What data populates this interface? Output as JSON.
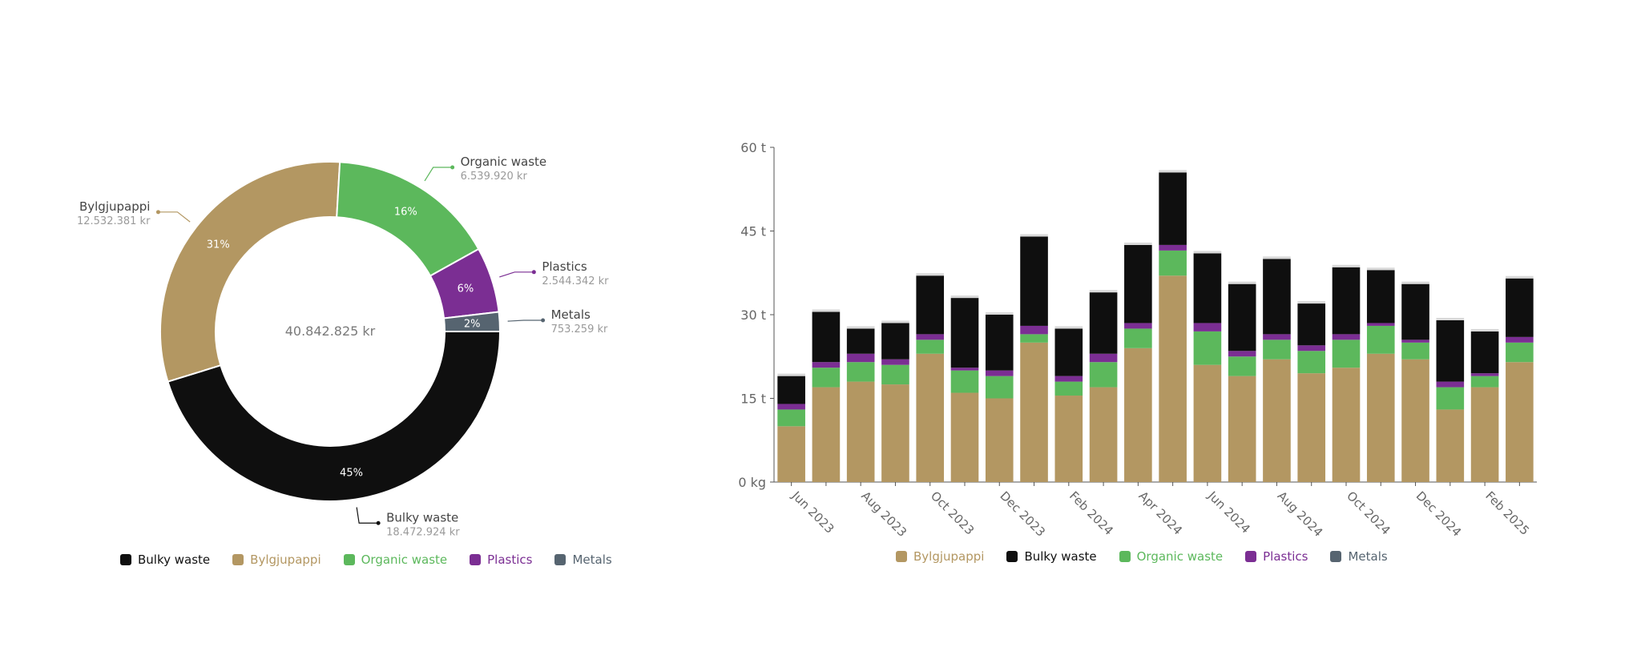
{
  "chart_data": [
    {
      "type": "pie",
      "center_label": "40.842.825 kr",
      "slices": [
        {
          "name": "Bulky waste",
          "value": 18472924,
          "value_label": "18.472.924 kr",
          "percent_label": "45%",
          "color": "#0f0f0f",
          "label_color": "#444444"
        },
        {
          "name": "Bylgjupappi",
          "value": 12532381,
          "value_label": "12.532.381 kr",
          "percent_label": "31%",
          "color": "#b39762",
          "label_color": "#444444"
        },
        {
          "name": "Organic waste",
          "value": 6539920,
          "value_label": "6.539.920 kr",
          "percent_label": "16%",
          "color": "#5cb85c",
          "label_color": "#444444"
        },
        {
          "name": "Plastics",
          "value": 2544342,
          "value_label": "2.544.342 kr",
          "percent_label": "6%",
          "color": "#7b2e93",
          "label_color": "#444444"
        },
        {
          "name": "Metals",
          "value": 753259,
          "value_label": "753.259 kr",
          "percent_label": "2%",
          "color": "#566470",
          "label_color": "#444444"
        }
      ],
      "legend": [
        {
          "name": "Bulky waste",
          "color": "#0f0f0f"
        },
        {
          "name": "Bylgjupappi",
          "color": "#b39762"
        },
        {
          "name": "Organic waste",
          "color": "#5cb85c"
        },
        {
          "name": "Plastics",
          "color": "#7b2e93"
        },
        {
          "name": "Metals",
          "color": "#566470"
        }
      ]
    },
    {
      "type": "bar",
      "stacked": true,
      "ylim": [
        0,
        60
      ],
      "y_ticks": [
        {
          "value": 0,
          "label": "0 kg"
        },
        {
          "value": 15,
          "label": "15 t"
        },
        {
          "value": 30,
          "label": "30 t"
        },
        {
          "value": 45,
          "label": "45 t"
        },
        {
          "value": 60,
          "label": "60 t"
        }
      ],
      "categories": [
        "Jun 2023",
        "Jul 2023",
        "Aug 2023",
        "Sep 2023",
        "Oct 2023",
        "Nov 2023",
        "Dec 2023",
        "Jan 2024",
        "Feb 2024",
        "Mar 2024",
        "Apr 2024",
        "May 2024",
        "Jun 2024",
        "Jul 2024",
        "Aug 2024",
        "Sep 2024",
        "Oct 2024",
        "Nov 2024",
        "Dec 2024",
        "Jan 2025",
        "Feb 2025",
        "Mar 2025"
      ],
      "x_tick_labels": [
        "Jun 2023",
        "",
        "Aug 2023",
        "",
        "Oct 2023",
        "",
        "Dec 2023",
        "",
        "Feb 2024",
        "",
        "Apr 2024",
        "",
        "Jun 2024",
        "",
        "Aug 2024",
        "",
        "Oct 2024",
        "",
        "Dec 2024",
        "",
        "Feb 2025",
        ""
      ],
      "series": [
        {
          "name": "Bylgjupappi",
          "color": "#b39762",
          "values": [
            10,
            17,
            18,
            17.5,
            23,
            16,
            15,
            25,
            15.5,
            17,
            24,
            37,
            21,
            19,
            22,
            19.5,
            20.5,
            23,
            22,
            13,
            17,
            21.5
          ]
        },
        {
          "name": "Organic waste",
          "color": "#5cb85c",
          "values": [
            3,
            3.5,
            3.5,
            3.5,
            2.5,
            4,
            4,
            1.5,
            2.5,
            4.5,
            3.5,
            4.5,
            6,
            3.5,
            3.5,
            4,
            5,
            5,
            3,
            4,
            2,
            3.5
          ]
        },
        {
          "name": "Plastics",
          "color": "#7b2e93",
          "values": [
            1,
            1,
            1.5,
            1,
            1,
            0.5,
            1,
            1.5,
            1,
            1.5,
            1,
            1,
            1.5,
            1,
            1,
            1,
            1,
            0.5,
            0.5,
            1,
            0.5,
            1
          ]
        },
        {
          "name": "Bulky waste",
          "color": "#0f0f0f",
          "values": [
            5,
            9,
            4.5,
            6.5,
            10.5,
            12.5,
            10,
            16,
            8.5,
            11,
            14,
            13,
            12.5,
            12,
            13.5,
            7.5,
            12,
            9.5,
            10,
            11,
            7.5,
            10.5
          ]
        },
        {
          "name": "Metals",
          "color": "#566470",
          "values": [
            0,
            0,
            0,
            0,
            0,
            0,
            0,
            0,
            0,
            0,
            0,
            0,
            0,
            0,
            0,
            0,
            0,
            0,
            0,
            0,
            0,
            0
          ]
        }
      ],
      "legend": [
        {
          "name": "Bylgjupappi",
          "color": "#b39762"
        },
        {
          "name": "Bulky waste",
          "color": "#0f0f0f"
        },
        {
          "name": "Organic waste",
          "color": "#5cb85c"
        },
        {
          "name": "Plastics",
          "color": "#7b2e93"
        },
        {
          "name": "Metals",
          "color": "#566470"
        }
      ]
    }
  ]
}
